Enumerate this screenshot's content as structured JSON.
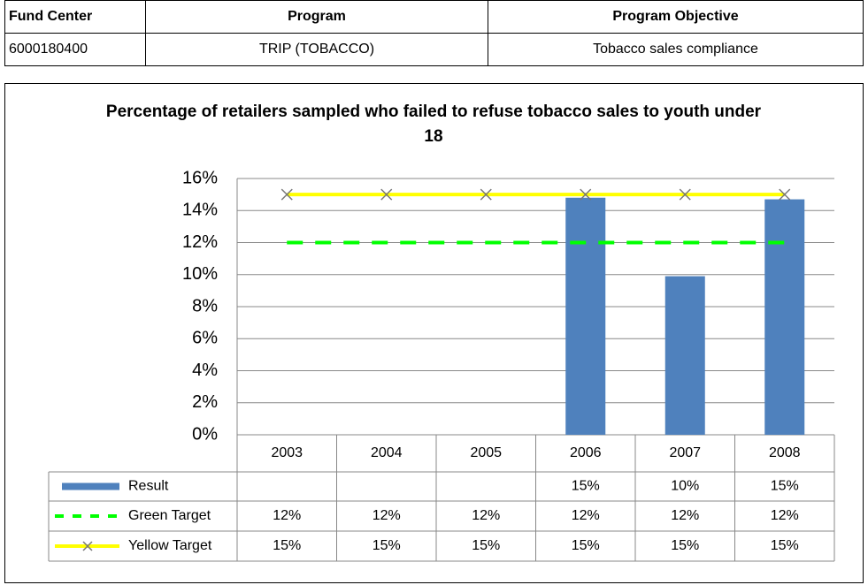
{
  "table": {
    "header": [
      "Fund Center",
      "Program",
      "Program Objective"
    ],
    "rows": [
      [
        "6000180400",
        "TRIP (TOBACCO)",
        "Tobacco sales compliance"
      ]
    ]
  },
  "chart_data": {
    "type": "bar",
    "title": "Percentage of retailers sampled who failed to refuse tobacco sales to youth under 18",
    "categories": [
      "2003",
      "2004",
      "2005",
      "2006",
      "2007",
      "2008"
    ],
    "series": [
      {
        "name": "Result",
        "type": "bar",
        "color": "#4f81bd",
        "values": [
          null,
          null,
          null,
          14.8,
          9.9,
          14.7
        ],
        "value_labels": [
          null,
          null,
          null,
          "15%",
          "10%",
          "15%"
        ]
      },
      {
        "name": "Green Target",
        "type": "line",
        "dash": true,
        "color": "#00ff00",
        "values": [
          12,
          12,
          12,
          12,
          12,
          12
        ],
        "value_labels": [
          "12%",
          "12%",
          "12%",
          "12%",
          "12%",
          "12%"
        ]
      },
      {
        "name": "Yellow Target",
        "type": "line",
        "marker": "x",
        "color": "#ffff00",
        "values": [
          15,
          15,
          15,
          15,
          15,
          15
        ],
        "value_labels": [
          "15%",
          "15%",
          "15%",
          "15%",
          "15%",
          "15%"
        ]
      }
    ],
    "ylim": [
      0,
      16
    ],
    "yticks": [
      {
        "value": 0,
        "label": "0%"
      },
      {
        "value": 2,
        "label": "2%"
      },
      {
        "value": 4,
        "label": "4%"
      },
      {
        "value": 6,
        "label": "6%"
      },
      {
        "value": 8,
        "label": "8%"
      },
      {
        "value": 10,
        "label": "10%"
      },
      {
        "value": 12,
        "label": "12%"
      },
      {
        "value": 14,
        "label": "14%"
      },
      {
        "value": 16,
        "label": "16%"
      }
    ],
    "grid": true
  }
}
